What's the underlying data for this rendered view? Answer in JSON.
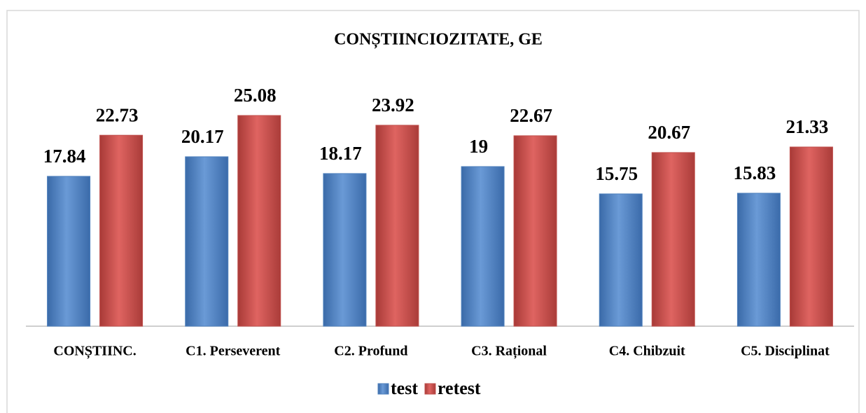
{
  "chart_data": {
    "type": "bar",
    "title": "CONȘTIINCIOZITATE, GE",
    "categories": [
      "CONȘTIINC.",
      "C1. Perseverent",
      "C2. Profund",
      "C3. Rațional",
      "C4. Chibzuit",
      "C5. Disciplinat"
    ],
    "series": [
      {
        "name": "test",
        "color": "#4f81bd",
        "values": [
          17.84,
          20.17,
          18.17,
          19,
          15.75,
          15.83
        ]
      },
      {
        "name": "retest",
        "color": "#c0504d",
        "values": [
          22.73,
          25.08,
          23.92,
          22.67,
          20.67,
          21.33
        ]
      }
    ],
    "legend": "bottom"
  }
}
